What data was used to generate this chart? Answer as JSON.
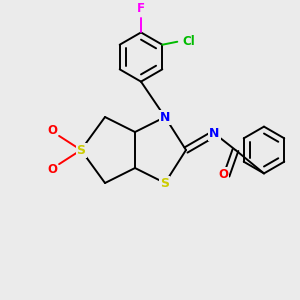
{
  "bg_color": "#ebebeb",
  "bond_color": "#000000",
  "atom_colors": {
    "S": "#cccc00",
    "N": "#0000ff",
    "O": "#ff0000",
    "Cl": "#00bb00",
    "F": "#ff00ff",
    "C": "#000000"
  }
}
